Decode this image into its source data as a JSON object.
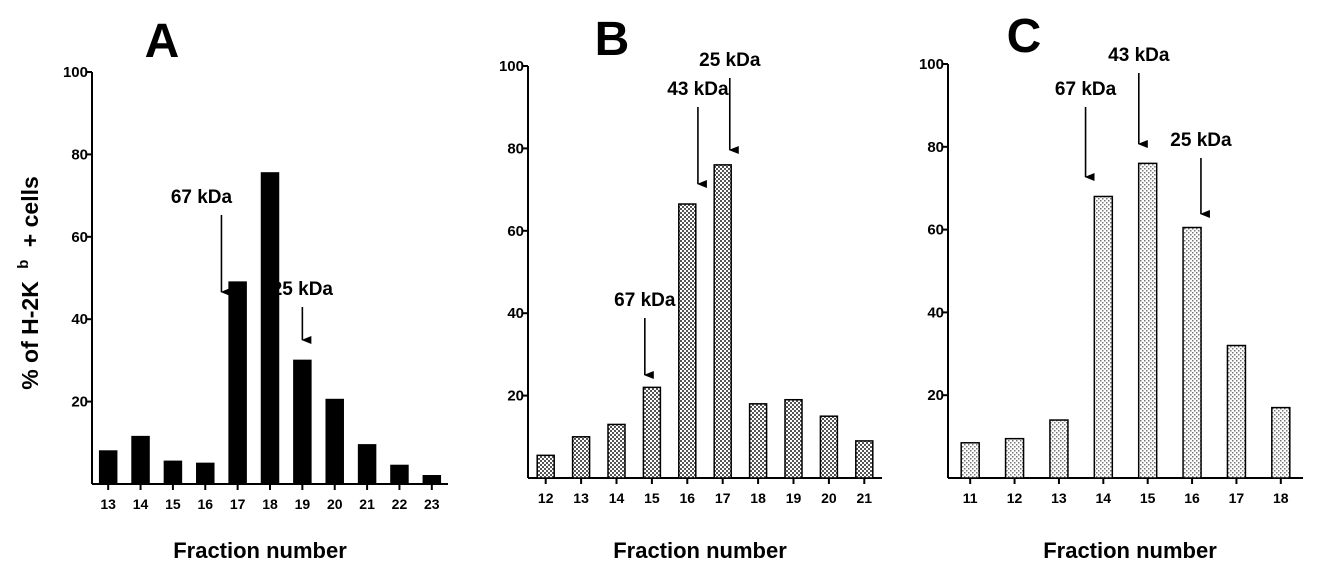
{
  "ylabel": "% of H-2K b + cells",
  "ylabel_main": "% of H-2K",
  "ylabel_sup": "b",
  "ylabel_tail": "+ cells",
  "colors": {
    "solid": "#000000",
    "dark_hatch": "#7a7a7a",
    "light_hatch": "#bdbdbd"
  },
  "chart_data": [
    {
      "panel": "A",
      "type": "bar",
      "fill": "solid",
      "categories": [
        "13",
        "14",
        "15",
        "16",
        "17",
        "18",
        "19",
        "20",
        "21",
        "22",
        "23"
      ],
      "values": [
        8,
        11.5,
        5.5,
        5,
        49,
        75.5,
        30,
        20.5,
        9.5,
        4.5,
        2
      ],
      "ylim": [
        0,
        100
      ],
      "yticks": [
        20,
        40,
        60,
        80,
        100
      ],
      "xlabel": "Fraction number",
      "ylabel": "% of H-2K b + cells",
      "annotations": [
        {
          "label": "67 kDa",
          "x": 16.5
        },
        {
          "label": "25 kDa",
          "x": 19
        }
      ]
    },
    {
      "panel": "B",
      "type": "bar",
      "fill": "dark_hatch",
      "categories": [
        "12",
        "13",
        "14",
        "15",
        "16",
        "17",
        "18",
        "19",
        "20",
        "21"
      ],
      "values": [
        5.5,
        10,
        13,
        22,
        66.5,
        76,
        18,
        19,
        15,
        9
      ],
      "ylim": [
        0,
        100
      ],
      "yticks": [
        20,
        40,
        60,
        80,
        100
      ],
      "xlabel": "Fraction number",
      "annotations": [
        {
          "label": "67 kDa",
          "x": 14.8
        },
        {
          "label": "43 kDa",
          "x": 16.3
        },
        {
          "label": "25 kDa",
          "x": 17.2
        }
      ]
    },
    {
      "panel": "C",
      "type": "bar",
      "fill": "light_hatch",
      "categories": [
        "11",
        "12",
        "13",
        "14",
        "15",
        "16",
        "17",
        "18"
      ],
      "values": [
        8.5,
        9.5,
        14,
        68,
        76,
        60.5,
        32,
        17
      ],
      "ylim": [
        0,
        100
      ],
      "yticks": [
        20,
        40,
        60,
        80,
        100
      ],
      "xlabel": "Fraction number",
      "annotations": [
        {
          "label": "67 kDa",
          "x": 13.6
        },
        {
          "label": "43 kDa",
          "x": 14.8
        },
        {
          "label": "25 kDa",
          "x": 16.2
        }
      ]
    }
  ]
}
